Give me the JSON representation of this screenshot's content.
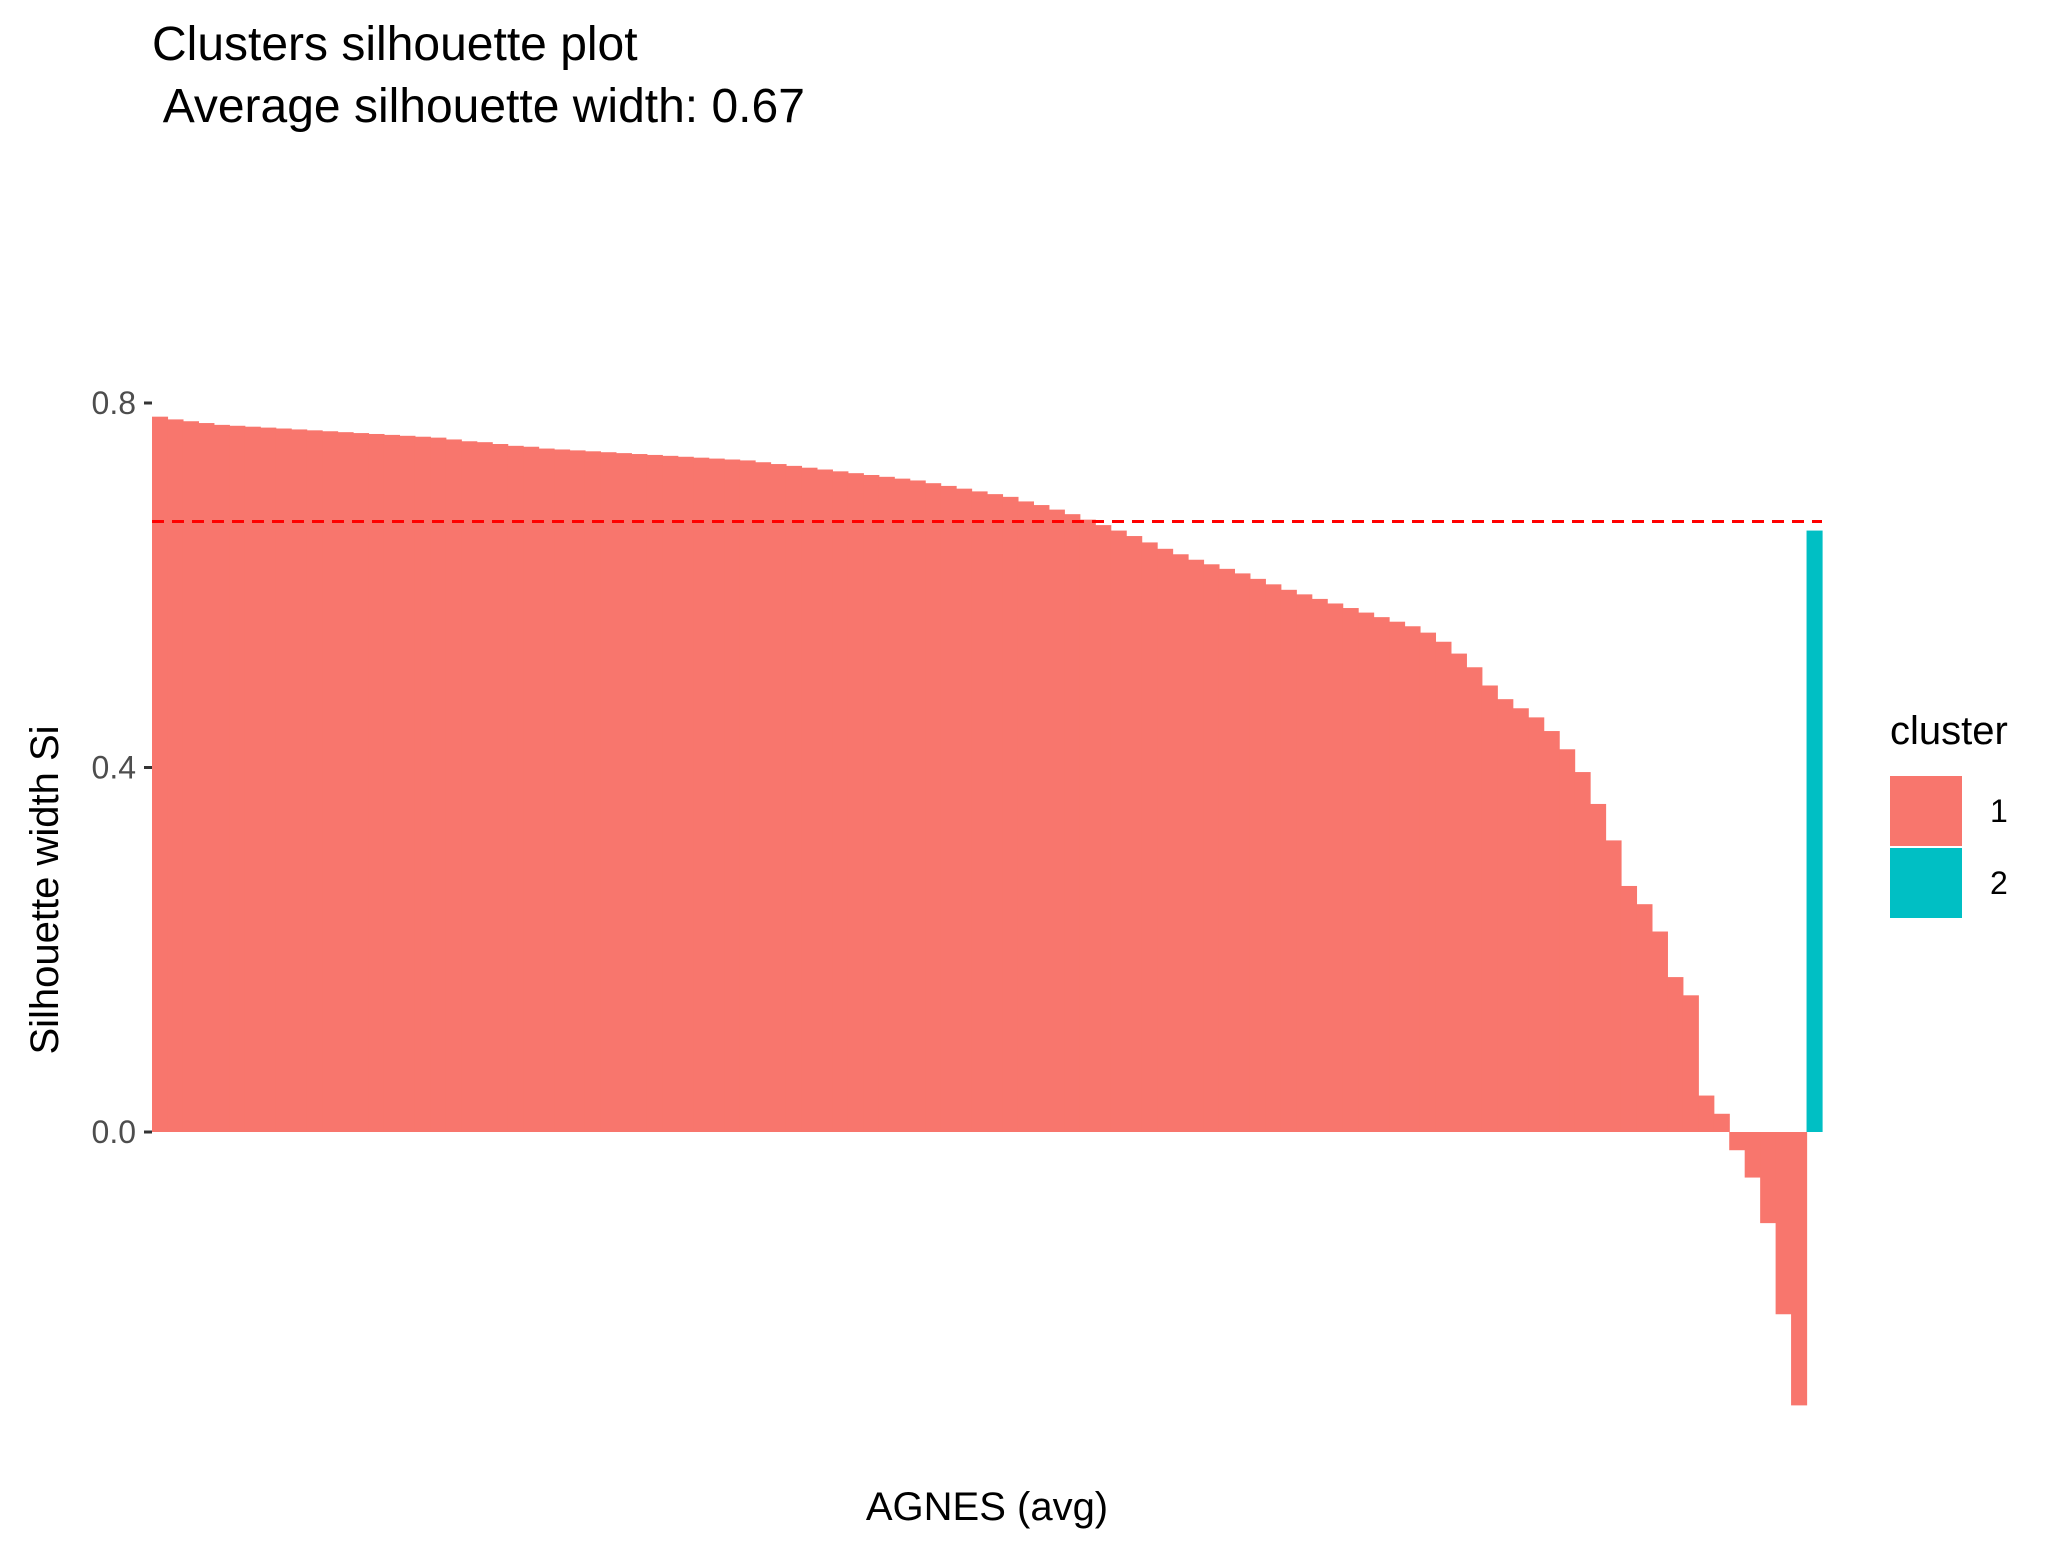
{
  "chart_data": {
    "type": "bar",
    "title": "Clusters silhouette plot",
    "subtitle": " Average silhouette width: 0.67",
    "xlabel": "AGNES (avg)",
    "ylabel": "Silhouette width Si",
    "ylim": [
      -0.32,
      0.8
    ],
    "yticks": [
      {
        "value": 0.0,
        "label": "0.0"
      },
      {
        "value": 0.4,
        "label": "0.4"
      },
      {
        "value": 0.8,
        "label": "0.8"
      }
    ],
    "grid": false,
    "legend": {
      "title": "cluster",
      "position": "right",
      "entries": [
        {
          "label": "1",
          "color": "#F8766D"
        },
        {
          "label": "2",
          "color": "#00BFC4"
        }
      ]
    },
    "reference_line": {
      "value": 0.67,
      "color": "#FF0000",
      "style": "dashed"
    },
    "series": [
      {
        "name": "1",
        "color": "#F8766D",
        "values": [
          0.785,
          0.782,
          0.78,
          0.778,
          0.776,
          0.775,
          0.774,
          0.773,
          0.772,
          0.771,
          0.77,
          0.769,
          0.768,
          0.767,
          0.766,
          0.765,
          0.764,
          0.763,
          0.762,
          0.76,
          0.758,
          0.757,
          0.755,
          0.753,
          0.752,
          0.75,
          0.749,
          0.748,
          0.747,
          0.746,
          0.745,
          0.744,
          0.743,
          0.742,
          0.741,
          0.74,
          0.739,
          0.738,
          0.737,
          0.735,
          0.733,
          0.731,
          0.729,
          0.727,
          0.725,
          0.723,
          0.721,
          0.719,
          0.717,
          0.715,
          0.712,
          0.709,
          0.706,
          0.703,
          0.7,
          0.697,
          0.692,
          0.688,
          0.683,
          0.678,
          0.672,
          0.666,
          0.66,
          0.654,
          0.647,
          0.64,
          0.634,
          0.628,
          0.623,
          0.618,
          0.613,
          0.607,
          0.601,
          0.595,
          0.59,
          0.585,
          0.58,
          0.575,
          0.57,
          0.565,
          0.56,
          0.555,
          0.548,
          0.538,
          0.525,
          0.51,
          0.49,
          0.475,
          0.465,
          0.455,
          0.44,
          0.42,
          0.395,
          0.36,
          0.32,
          0.27,
          0.25,
          0.22,
          0.17,
          0.15,
          0.04,
          0.02,
          -0.02,
          -0.05,
          -0.1,
          -0.2,
          -0.3
        ]
      },
      {
        "name": "2",
        "color": "#00BFC4",
        "values": [
          0.66
        ]
      }
    ]
  }
}
